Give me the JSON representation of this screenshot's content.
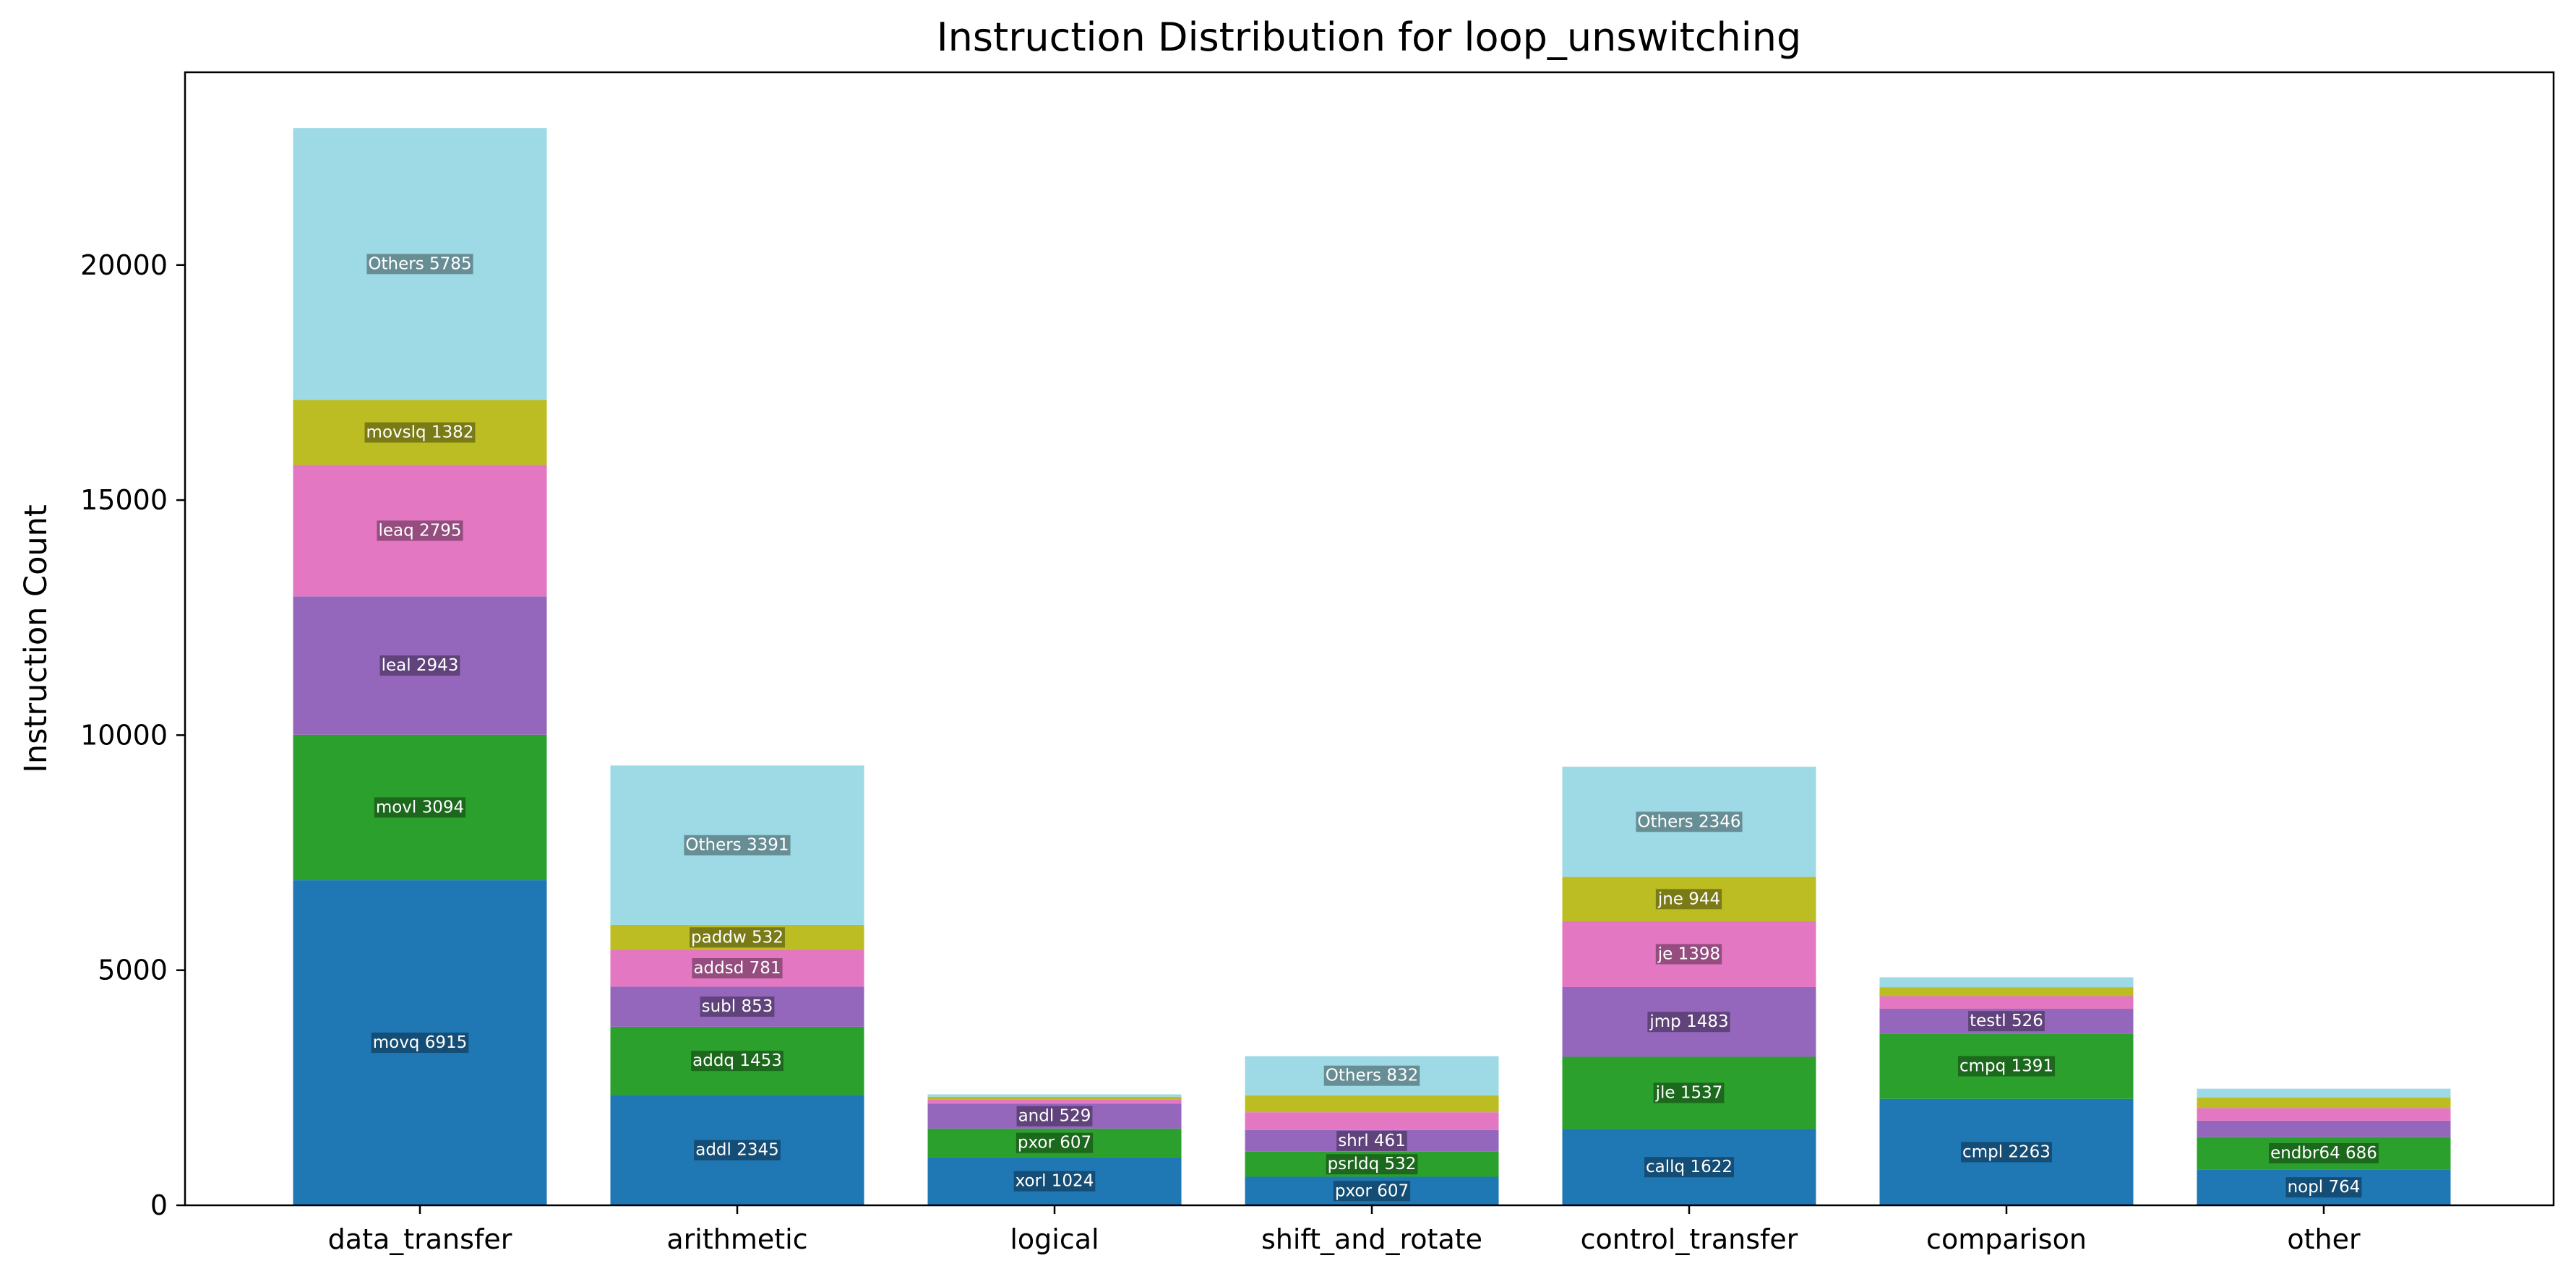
{
  "chart_data": {
    "type": "bar",
    "stacked": true,
    "title": "Instruction Distribution for loop_unswitching",
    "xlabel": "",
    "ylabel": "Instruction Count",
    "ylim": [
      0,
      24100
    ],
    "yticks": [
      0,
      5000,
      10000,
      15000,
      20000
    ],
    "grid": false,
    "categories": [
      "data_transfer",
      "arithmetic",
      "logical",
      "shift_and_rotate",
      "control_transfer",
      "comparison",
      "other"
    ],
    "colors": [
      "#1f77b4",
      "#2ca02c",
      "#9467bd",
      "#e377c2",
      "#bcbd22",
      "#9edae5"
    ],
    "stacks": [
      [
        {
          "label": "movq 6915",
          "value": 6915
        },
        {
          "label": "movl 3094",
          "value": 3094
        },
        {
          "label": "leal 2943",
          "value": 2943
        },
        {
          "label": "leaq 2795",
          "value": 2795
        },
        {
          "label": "movslq 1382",
          "value": 1382
        },
        {
          "label": "Others 5785",
          "value": 5785
        }
      ],
      [
        {
          "label": "addl 2345",
          "value": 2345
        },
        {
          "label": "addq 1453",
          "value": 1453
        },
        {
          "label": "subl 853",
          "value": 853
        },
        {
          "label": "addsd 781",
          "value": 781
        },
        {
          "label": "paddw 532",
          "value": 532
        },
        {
          "label": "Others 3391",
          "value": 3391
        }
      ],
      [
        {
          "label": "xorl 1024",
          "value": 1024
        },
        {
          "label": "pxor 607",
          "value": 607
        },
        {
          "label": "andl 529",
          "value": 529
        },
        {
          "label": "",
          "value": 90
        },
        {
          "label": "",
          "value": 60
        },
        {
          "label": "",
          "value": 50
        }
      ],
      [
        {
          "label": "pxor 607",
          "value": 607
        },
        {
          "label": "psrldq 532",
          "value": 532
        },
        {
          "label": "shrl 461",
          "value": 461
        },
        {
          "label": "",
          "value": 380
        },
        {
          "label": "",
          "value": 360
        },
        {
          "label": "Others 832",
          "value": 832
        }
      ],
      [
        {
          "label": "callq 1622",
          "value": 1622
        },
        {
          "label": "jle 1537",
          "value": 1537
        },
        {
          "label": "jmp 1483",
          "value": 1483
        },
        {
          "label": "je 1398",
          "value": 1398
        },
        {
          "label": "jne 944",
          "value": 944
        },
        {
          "label": "Others 2346",
          "value": 2346
        }
      ],
      [
        {
          "label": "cmpl 2263",
          "value": 2263
        },
        {
          "label": "cmpq 1391",
          "value": 1391
        },
        {
          "label": "testl 526",
          "value": 526
        },
        {
          "label": "",
          "value": 270
        },
        {
          "label": "",
          "value": 190
        },
        {
          "label": "",
          "value": 210
        }
      ],
      [
        {
          "label": "nopl 764",
          "value": 764
        },
        {
          "label": "endbr64 686",
          "value": 686
        },
        {
          "label": "",
          "value": 350
        },
        {
          "label": "",
          "value": 270
        },
        {
          "label": "",
          "value": 220
        },
        {
          "label": "",
          "value": 190
        }
      ]
    ]
  }
}
